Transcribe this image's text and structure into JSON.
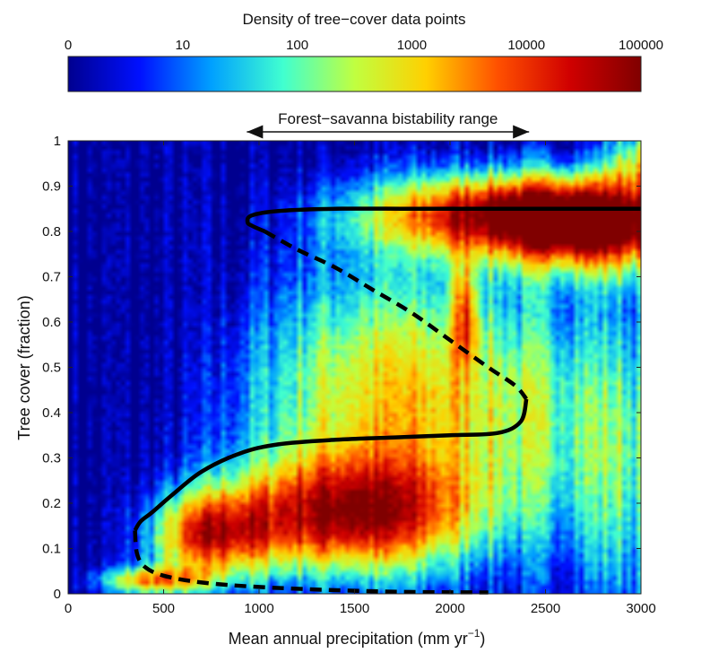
{
  "chart_data": {
    "type": "heatmap",
    "colorbar": {
      "title": "Density of tree−cover data points",
      "ticks": [
        "0",
        "10",
        "100",
        "1000",
        "10000",
        "100000"
      ],
      "scale": "log",
      "colormap": [
        "#00008f",
        "#0010ff",
        "#00a0ff",
        "#40ffd0",
        "#c0ff40",
        "#ffd000",
        "#ff5000",
        "#d00000",
        "#800000"
      ]
    },
    "annotation": "Forest−savanna bistability range",
    "bistability_range": [
      950,
      2400
    ],
    "xlabel": "Mean annual precipitation (mm yr",
    "xlabel_superscript": "−1",
    "xlabel_close": ")",
    "ylabel": "Tree cover (fraction)",
    "xlim": [
      0,
      3000
    ],
    "ylim": [
      0,
      1
    ],
    "xticks": [
      0,
      500,
      1000,
      1500,
      2000,
      2500,
      3000
    ],
    "yticks": [
      0,
      0.1,
      0.2,
      0.3,
      0.4,
      0.5,
      0.6,
      0.7,
      0.8,
      0.9,
      1
    ],
    "density_modes": [
      {
        "name": "forest",
        "center": [
          2300,
          0.83
        ],
        "log10_peak": 4.6
      },
      {
        "name": "savanna",
        "center": [
          1500,
          0.17
        ],
        "log10_peak": 3.7
      },
      {
        "name": "treeless",
        "center": [
          400,
          0.03
        ],
        "log10_peak": 3.6
      }
    ],
    "series": [
      {
        "style": "solid",
        "x": [
          3000,
          2600,
          2200,
          1800,
          1400,
          1100,
          960,
          940,
          965,
          1030
        ],
        "y": [
          0.85,
          0.85,
          0.85,
          0.85,
          0.85,
          0.845,
          0.835,
          0.82,
          0.812,
          0.8
        ]
      },
      {
        "style": "dashed",
        "x": [
          1030,
          1200,
          1400,
          1600,
          1800,
          2000,
          2200,
          2340,
          2400
        ],
        "y": [
          0.8,
          0.76,
          0.72,
          0.67,
          0.62,
          0.56,
          0.5,
          0.46,
          0.43
        ]
      },
      {
        "style": "solid",
        "x": [
          2400,
          2370,
          2250,
          2000,
          1700,
          1400,
          1100,
          900,
          700,
          550,
          440,
          380,
          350
        ],
        "y": [
          0.43,
          0.38,
          0.355,
          0.35,
          0.345,
          0.34,
          0.33,
          0.31,
          0.27,
          0.22,
          0.18,
          0.16,
          0.14
        ]
      },
      {
        "style": "dashed",
        "x": [
          350,
          360,
          400,
          500,
          700,
          1000,
          1400,
          1800,
          2200
        ],
        "y": [
          0.14,
          0.09,
          0.06,
          0.04,
          0.025,
          0.015,
          0.008,
          0.004,
          0.003
        ]
      }
    ]
  }
}
